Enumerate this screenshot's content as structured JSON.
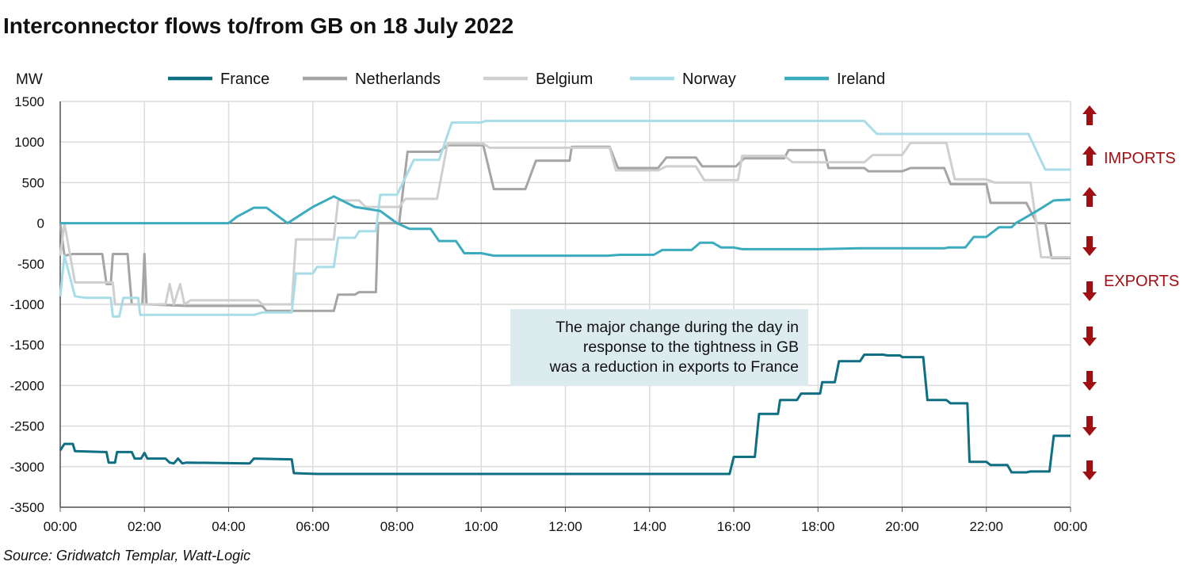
{
  "chart_data": {
    "type": "line",
    "title": "Interconnector flows to/from GB on 18 July 2022",
    "y_label": "MW",
    "source": "Source: Gridwatch Templar, Watt-Logic",
    "side_labels": [
      "IMPORTS",
      "EXPORTS"
    ],
    "annotation": [
      "The major change during the day in",
      "response to the tightness in GB",
      "was a reduction in exports to France"
    ],
    "legend": "top",
    "grid": true,
    "xlim": [
      0,
      24
    ],
    "xticks": [
      {
        "value": 0,
        "label": "00:00"
      },
      {
        "value": 2,
        "label": "02:00"
      },
      {
        "value": 4,
        "label": "04:00"
      },
      {
        "value": 6,
        "label": "06:00"
      },
      {
        "value": 8,
        "label": "08:00"
      },
      {
        "value": 10,
        "label": "10:00"
      },
      {
        "value": 12,
        "label": "12:00"
      },
      {
        "value": 14,
        "label": "14:00"
      },
      {
        "value": 16,
        "label": "16:00"
      },
      {
        "value": 18,
        "label": "18:00"
      },
      {
        "value": 20,
        "label": "20:00"
      },
      {
        "value": 22,
        "label": "22:00"
      },
      {
        "value": 24,
        "label": "00:00"
      }
    ],
    "ylim": [
      -3500,
      1500
    ],
    "yticks": [
      1500,
      1000,
      500,
      0,
      -500,
      -1000,
      -1500,
      -2000,
      -2500,
      -3000,
      -3500
    ],
    "series": [
      {
        "name": "France",
        "color": "#0e6e82",
        "x": [
          0,
          0.1,
          0.3,
          0.35,
          1.1,
          1.15,
          1.3,
          1.35,
          1.7,
          1.77,
          1.92,
          2.0,
          2.07,
          2.5,
          2.6,
          2.7,
          2.8,
          2.9,
          3.0,
          4.5,
          4.6,
          5.5,
          5.55,
          6.1,
          15.9,
          16.0,
          16.5,
          16.6,
          17.05,
          17.1,
          17.5,
          17.6,
          18.05,
          18.1,
          18.4,
          18.5,
          19.0,
          19.1,
          19.55,
          19.65,
          19.95,
          20.0,
          20.5,
          20.6,
          21.05,
          21.15,
          21.55,
          21.6,
          22.0,
          22.1,
          22.5,
          22.6,
          22.95,
          23.05,
          23.5,
          23.6,
          24
        ],
        "values": [
          -2800,
          -2720,
          -2720,
          -2810,
          -2820,
          -2950,
          -2950,
          -2820,
          -2820,
          -2900,
          -2900,
          -2830,
          -2900,
          -2900,
          -2950,
          -2960,
          -2900,
          -2960,
          -2950,
          -2960,
          -2900,
          -2910,
          -3080,
          -3090,
          -3090,
          -2880,
          -2880,
          -2350,
          -2350,
          -2180,
          -2180,
          -2100,
          -2100,
          -1960,
          -1960,
          -1700,
          -1700,
          -1620,
          -1620,
          -1630,
          -1630,
          -1650,
          -1650,
          -2180,
          -2180,
          -2220,
          -2220,
          -2940,
          -2940,
          -2980,
          -2980,
          -3070,
          -3070,
          -3060,
          -3060,
          -2620,
          -2620
        ]
      },
      {
        "name": "Netherlands",
        "color": "#a6a5a6",
        "x": [
          0,
          0.1,
          0.3,
          1.0,
          1.1,
          1.2,
          1.25,
          1.6,
          1.7,
          1.95,
          2.0,
          2.05,
          3.0,
          4.8,
          4.9,
          6.5,
          6.6,
          7.0,
          7.1,
          7.5,
          7.55,
          8.05,
          8.25,
          9.0,
          9.2,
          10.05,
          10.3,
          11.05,
          11.3,
          12.1,
          12.15,
          13.05,
          13.25,
          14.2,
          14.4,
          15.1,
          15.25,
          16.05,
          16.25,
          17.2,
          17.3,
          18.15,
          18.25,
          19.1,
          19.2,
          20.0,
          20.2,
          21.0,
          21.15,
          22.0,
          22.1,
          22.95,
          23.2,
          23.4,
          23.55,
          24
        ],
        "values": [
          0,
          -400,
          -380,
          -380,
          -750,
          -750,
          -380,
          -380,
          -1000,
          -1000,
          -380,
          -1000,
          -1020,
          -1020,
          -1080,
          -1080,
          -880,
          -880,
          -850,
          -850,
          0,
          0,
          880,
          880,
          960,
          960,
          420,
          420,
          770,
          770,
          940,
          940,
          680,
          680,
          810,
          810,
          700,
          700,
          800,
          800,
          900,
          900,
          680,
          680,
          640,
          640,
          680,
          680,
          480,
          480,
          250,
          250,
          0,
          0,
          -430,
          -430
        ]
      },
      {
        "name": "Belgium",
        "color": "#cfcfcf",
        "x": [
          0,
          0.1,
          0.35,
          1.25,
          1.3,
          2.5,
          2.6,
          2.7,
          2.85,
          2.95,
          3.1,
          4.7,
          4.8,
          5.5,
          5.6,
          6.5,
          6.6,
          7.1,
          7.25,
          8.05,
          8.2,
          8.95,
          9.2,
          10.05,
          10.2,
          13.05,
          13.2,
          14.2,
          14.4,
          15.1,
          15.3,
          16.1,
          16.2,
          17.2,
          17.4,
          19.1,
          19.3,
          20.0,
          20.2,
          21.05,
          21.25,
          22.0,
          22.2,
          23.05,
          23.3,
          24
        ],
        "values": [
          -400,
          0,
          -730,
          -730,
          -1000,
          -1000,
          -750,
          -1000,
          -750,
          -1000,
          -950,
          -950,
          -1000,
          -1000,
          -200,
          -200,
          280,
          280,
          200,
          200,
          300,
          300,
          980,
          980,
          930,
          930,
          650,
          650,
          700,
          700,
          530,
          530,
          830,
          830,
          750,
          750,
          840,
          840,
          990,
          990,
          540,
          540,
          500,
          500,
          -420,
          -420
        ]
      },
      {
        "name": "Norway",
        "color": "#a8dde7",
        "x": [
          0,
          0.1,
          0.35,
          0.6,
          1.2,
          1.25,
          1.4,
          1.5,
          1.85,
          1.9,
          2.1,
          4.6,
          4.8,
          5.5,
          5.6,
          6.0,
          6.1,
          6.5,
          6.6,
          7.0,
          7.1,
          7.5,
          7.6,
          8.0,
          8.4,
          9.0,
          9.3,
          10.0,
          10.1,
          19.1,
          19.4,
          23.0,
          23.4,
          24
        ],
        "values": [
          -900,
          -400,
          -900,
          -920,
          -920,
          -1150,
          -1150,
          -920,
          -920,
          -1130,
          -1130,
          -1130,
          -1100,
          -1100,
          -620,
          -620,
          -540,
          -540,
          -180,
          -180,
          -100,
          -100,
          350,
          350,
          780,
          780,
          1240,
          1240,
          1260,
          1260,
          1100,
          1100,
          660,
          660
        ]
      },
      {
        "name": "Ireland",
        "color": "#3aacbd",
        "x": [
          0,
          4.0,
          4.2,
          4.6,
          4.9,
          5.4,
          6.0,
          6.5,
          7.0,
          7.6,
          8.0,
          8.3,
          8.8,
          9.0,
          9.4,
          9.6,
          10.0,
          10.3,
          13.0,
          13.3,
          14.1,
          14.3,
          15.0,
          15.2,
          15.5,
          15.7,
          16.0,
          16.2,
          18.0,
          19.0,
          21.0,
          21.1,
          21.5,
          21.7,
          22.0,
          22.3,
          22.6,
          22.7,
          23.2,
          23.6,
          24
        ],
        "values": [
          0,
          0,
          80,
          190,
          190,
          0,
          200,
          330,
          200,
          150,
          0,
          -70,
          -70,
          -220,
          -220,
          -370,
          -370,
          -400,
          -400,
          -390,
          -390,
          -330,
          -330,
          -240,
          -240,
          -300,
          -300,
          -320,
          -320,
          -310,
          -310,
          -300,
          -300,
          -170,
          -170,
          -50,
          -50,
          0,
          150,
          280,
          290
        ]
      }
    ]
  }
}
